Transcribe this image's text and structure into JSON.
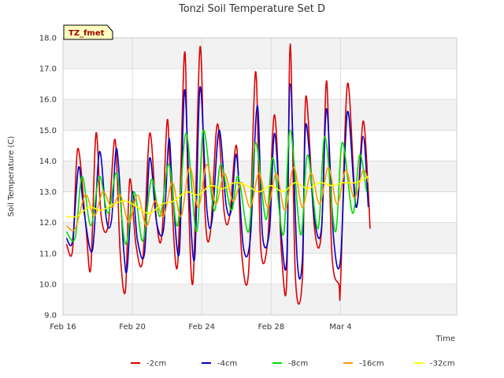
{
  "chart_data": {
    "type": "line",
    "title": "Tonzi Soil Temperature Set D",
    "xlabel": "Time",
    "ylabel": "Soil Temperature (C)",
    "ylim": [
      9.0,
      18.0
    ],
    "xlim": [
      0,
      22.7
    ],
    "x_unit": "days since Feb 16",
    "x_ticks": [
      {
        "pos": 0,
        "label": "Feb 16"
      },
      {
        "pos": 4,
        "label": "Feb 20"
      },
      {
        "pos": 8,
        "label": "Feb 24"
      },
      {
        "pos": 12,
        "label": "Feb 28"
      },
      {
        "pos": 16,
        "label": "Mar 4"
      }
    ],
    "y_ticks": [
      9.0,
      10.0,
      11.0,
      12.0,
      13.0,
      14.0,
      15.0,
      16.0,
      17.0,
      18.0
    ],
    "annotation": "TZ_fmet",
    "grid_bands": true,
    "legend_position": "bottom-center",
    "series": [
      {
        "name": "-2cm",
        "color": "#dd0000",
        "x": [
          0.2,
          0.55,
          0.85,
          1.3,
          1.6,
          1.9,
          2.2,
          2.6,
          3.0,
          3.3,
          3.6,
          3.85,
          4.2,
          4.6,
          5.0,
          5.4,
          5.7,
          6.0,
          6.2,
          6.6,
          7.0,
          7.2,
          7.5,
          7.9,
          8.2,
          8.5,
          8.9,
          9.3,
          9.6,
          10.0,
          10.3,
          10.7,
          11.1,
          11.4,
          11.8,
          12.2,
          12.6,
          12.9,
          13.1,
          13.4,
          13.8,
          14.0,
          14.5,
          14.9,
          15.2,
          15.5,
          15.9,
          16.0,
          16.4,
          16.9,
          17.3,
          17.6,
          17.7
        ],
        "y": [
          11.3,
          11.1,
          14.4,
          12.0,
          10.5,
          14.9,
          12.2,
          11.9,
          14.7,
          11.0,
          9.8,
          13.4,
          11.3,
          10.8,
          14.9,
          12.0,
          11.6,
          15.3,
          13.5,
          10.6,
          17.5,
          13.4,
          10.1,
          17.7,
          12.2,
          11.7,
          15.2,
          12.3,
          12.2,
          14.5,
          11.0,
          10.4,
          16.9,
          11.2,
          11.4,
          15.5,
          11.0,
          10.1,
          17.8,
          10.2,
          10.2,
          16.1,
          11.8,
          11.7,
          16.6,
          11.0,
          10.0,
          10.0,
          16.5,
          12.5,
          15.3,
          13.0,
          11.8
        ]
      },
      {
        "name": "-4cm",
        "color": "#0000cc",
        "x": [
          0.2,
          0.55,
          0.9,
          1.2,
          1.7,
          2.1,
          2.5,
          2.8,
          3.1,
          3.5,
          3.7,
          4.0,
          4.3,
          4.7,
          5.0,
          5.4,
          5.8,
          6.1,
          6.3,
          6.7,
          7.0,
          7.3,
          7.6,
          7.9,
          8.3,
          8.6,
          9.0,
          9.4,
          9.7,
          10.0,
          10.4,
          10.8,
          11.2,
          11.5,
          11.9,
          12.2,
          12.6,
          12.9,
          13.1,
          13.5,
          13.8,
          14.0,
          14.5,
          14.9,
          15.2,
          15.6,
          16.0,
          16.4,
          16.9,
          17.3,
          17.6
        ],
        "y": [
          11.5,
          11.4,
          13.8,
          12.4,
          11.1,
          14.3,
          12.1,
          12.1,
          14.4,
          11.1,
          10.5,
          13.0,
          11.4,
          11.0,
          14.1,
          12.0,
          11.8,
          14.7,
          13.2,
          11.0,
          16.3,
          12.7,
          10.9,
          16.4,
          12.4,
          12.1,
          15.0,
          12.6,
          12.4,
          14.2,
          11.2,
          11.5,
          15.8,
          11.6,
          11.7,
          14.9,
          11.5,
          10.8,
          16.5,
          10.8,
          10.8,
          15.2,
          12.1,
          11.8,
          15.7,
          11.5,
          10.8,
          15.6,
          12.5,
          14.8,
          12.5
        ]
      },
      {
        "name": "-8cm",
        "color": "#00dd00",
        "x": [
          0.2,
          0.7,
          1.1,
          1.6,
          2.1,
          2.6,
          3.1,
          3.6,
          4.1,
          4.6,
          5.1,
          5.6,
          6.1,
          6.6,
          7.1,
          7.7,
          8.1,
          8.7,
          9.1,
          9.7,
          10.1,
          10.7,
          11.1,
          11.7,
          12.1,
          12.7,
          13.1,
          13.7,
          14.1,
          14.7,
          15.1,
          15.7,
          16.1,
          16.7,
          17.1,
          17.5
        ],
        "y": [
          11.7,
          11.5,
          13.5,
          11.9,
          13.5,
          12.3,
          13.6,
          11.3,
          13.0,
          11.4,
          13.4,
          12.2,
          13.9,
          11.9,
          14.9,
          11.7,
          15.0,
          12.4,
          13.9,
          12.4,
          13.5,
          11.7,
          14.6,
          12.1,
          14.1,
          11.6,
          15.0,
          11.6,
          14.2,
          11.8,
          14.8,
          11.7,
          14.6,
          12.3,
          14.2,
          13.0
        ]
      },
      {
        "name": "-16cm",
        "color": "#ff9900",
        "x": [
          0.2,
          0.7,
          1.3,
          1.8,
          2.3,
          2.8,
          3.3,
          3.8,
          4.3,
          4.8,
          5.3,
          5.8,
          6.3,
          6.8,
          7.3,
          7.8,
          8.3,
          8.8,
          9.3,
          9.8,
          10.3,
          10.8,
          11.3,
          11.8,
          12.3,
          12.8,
          13.3,
          13.8,
          14.3,
          14.8,
          15.3,
          15.8,
          16.3,
          16.8,
          17.3,
          17.6
        ],
        "y": [
          11.9,
          11.8,
          12.9,
          12.2,
          13.0,
          12.5,
          12.9,
          12.0,
          12.9,
          11.9,
          12.7,
          12.2,
          13.3,
          12.2,
          13.8,
          12.5,
          13.9,
          12.6,
          13.6,
          12.7,
          13.3,
          12.5,
          13.6,
          12.5,
          13.6,
          12.4,
          13.8,
          12.5,
          13.6,
          12.6,
          13.8,
          12.6,
          13.7,
          12.8,
          13.7,
          13.3
        ]
      },
      {
        "name": "-32cm",
        "color": "#ffff00",
        "x": [
          0.2,
          0.8,
          1.5,
          2.2,
          2.9,
          3.6,
          4.3,
          5.0,
          5.7,
          6.4,
          7.1,
          7.8,
          8.5,
          9.2,
          9.9,
          10.6,
          11.3,
          12.0,
          12.7,
          13.4,
          14.1,
          14.8,
          15.5,
          16.2,
          16.9,
          17.6
        ],
        "y": [
          12.2,
          12.2,
          12.5,
          12.4,
          12.6,
          12.7,
          12.5,
          12.3,
          12.6,
          12.7,
          13.0,
          12.9,
          13.2,
          13.1,
          13.3,
          13.2,
          13.0,
          13.2,
          13.0,
          13.3,
          13.1,
          13.3,
          13.2,
          13.3,
          13.3,
          13.5
        ]
      }
    ]
  }
}
